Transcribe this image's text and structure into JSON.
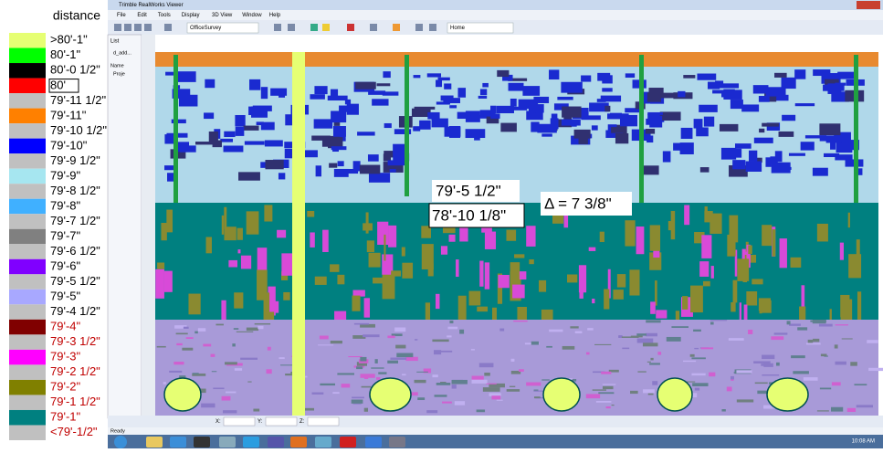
{
  "legend": {
    "title": "distance",
    "items": [
      {
        "label": ">80'-1\"",
        "color": "#e6ff73",
        "text_color": "#000000"
      },
      {
        "label": "80'-1\"",
        "color": "#00ff00",
        "text_color": "#000000"
      },
      {
        "label": "80'-0 1/2\"",
        "color": "#000000",
        "text_color": "#000000"
      },
      {
        "label": "80'",
        "color": "#ff0000",
        "text_color": "#000000"
      },
      {
        "label": "79'-11 1/2\"",
        "color": "#c0c0c0",
        "text_color": "#000000"
      },
      {
        "label": "79'-11\"",
        "color": "#ff8000",
        "text_color": "#000000"
      },
      {
        "label": "79'-10 1/2\"",
        "color": "#c0c0c0",
        "text_color": "#000000"
      },
      {
        "label": "79'-10\"",
        "color": "#0000ff",
        "text_color": "#000000"
      },
      {
        "label": "79'-9 1/2\"",
        "color": "#c0c0c0",
        "text_color": "#000000"
      },
      {
        "label": "79'-9\"",
        "color": "#a6e6f0",
        "text_color": "#000000"
      },
      {
        "label": "79'-8 1/2\"",
        "color": "#c0c0c0",
        "text_color": "#000000"
      },
      {
        "label": "79'-8\"",
        "color": "#40b0ff",
        "text_color": "#000000"
      },
      {
        "label": "79'-7 1/2\"",
        "color": "#c0c0c0",
        "text_color": "#000000"
      },
      {
        "label": "79'-7\"",
        "color": "#808080",
        "text_color": "#000000"
      },
      {
        "label": "79'-6 1/2\"",
        "color": "#c0c0c0",
        "text_color": "#000000"
      },
      {
        "label": "79'-6\"",
        "color": "#8000ff",
        "text_color": "#000000"
      },
      {
        "label": "79'-5 1/2\"",
        "color": "#c0c0c0",
        "text_color": "#000000"
      },
      {
        "label": "79'-5\"",
        "color": "#a8a8ff",
        "text_color": "#000000"
      },
      {
        "label": "79'-4 1/2\"",
        "color": "#c0c0c0",
        "text_color": "#000000"
      },
      {
        "label": "79'-4\"",
        "color": "#800000",
        "text_color": "#c00000"
      },
      {
        "label": "79'-3 1/2\"",
        "color": "#c0c0c0",
        "text_color": "#c00000"
      },
      {
        "label": "79'-3\"",
        "color": "#ff00ff",
        "text_color": "#c00000"
      },
      {
        "label": "79'-2 1/2\"",
        "color": "#c0c0c0",
        "text_color": "#c00000"
      },
      {
        "label": "79'-2\"",
        "color": "#808000",
        "text_color": "#c00000"
      },
      {
        "label": "79'-1 1/2\"",
        "color": "#c0c0c0",
        "text_color": "#c00000"
      },
      {
        "label": "79'-1\"",
        "color": "#008080",
        "text_color": "#c00000"
      },
      {
        "label": "<79'-1/2\"",
        "color": "#c0c0c0",
        "text_color": "#c00000"
      }
    ]
  },
  "app": {
    "title": "Trimble RealWorks Viewer",
    "menu": [
      "File",
      "Edit",
      "Tools",
      "Display",
      "3D View",
      "Window",
      "Help"
    ],
    "toolbar": {
      "project": "OfficeSurvey",
      "view": "Home"
    },
    "side_panel": {
      "tab": "List",
      "item": "d_add...",
      "column": "Name",
      "tree_item": "Proje"
    },
    "coordinates": [
      "X:",
      "Y:",
      "Z:"
    ],
    "status": "Ready",
    "clock": "10:08 AM"
  },
  "annotations": {
    "upper": "79'-5 1/2\"",
    "lower": "78'-10 1/8\"",
    "delta": "Δ = 7 3/8\""
  }
}
